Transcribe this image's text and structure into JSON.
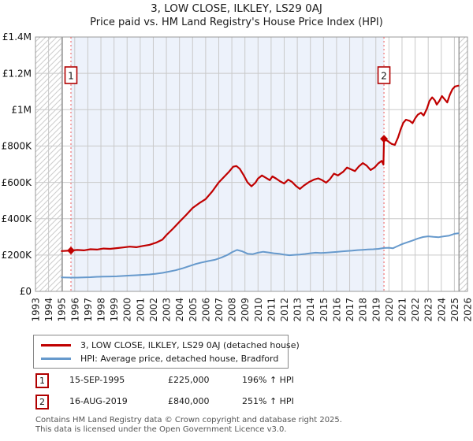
{
  "chart_data": {
    "type": "line",
    "title": "3, LOW CLOSE, ILKLEY, LS29 0AJ",
    "subtitle": "Price paid vs. HM Land Registry's House Price Index (HPI)",
    "grid": true,
    "legend_position": "bottom-left",
    "x_axis": {
      "min": 1993,
      "max": 2026,
      "tick_years": [
        1993,
        1994,
        1995,
        1996,
        1997,
        1998,
        1999,
        2000,
        2001,
        2002,
        2003,
        2004,
        2005,
        2006,
        2007,
        2008,
        2009,
        2010,
        2011,
        2012,
        2013,
        2014,
        2015,
        2016,
        2017,
        2018,
        2019,
        2020,
        2021,
        2022,
        2023,
        2024,
        2025,
        2026
      ]
    },
    "y_axis": {
      "min": 0,
      "max": 1400000,
      "ticks": [
        {
          "value": 0,
          "label": "£0"
        },
        {
          "value": 200000,
          "label": "£200K"
        },
        {
          "value": 400000,
          "label": "£400K"
        },
        {
          "value": 600000,
          "label": "£600K"
        },
        {
          "value": 800000,
          "label": "£800K"
        },
        {
          "value": 1000000,
          "label": "£1M"
        },
        {
          "value": 1200000,
          "label": "£1.2M"
        },
        {
          "value": 1400000,
          "label": "£1.4M"
        }
      ]
    },
    "regions": {
      "hatched": [
        [
          1993,
          1995.05
        ],
        [
          2025.35,
          2026
        ]
      ],
      "hpi_shaded": [
        1995.71,
        2019.62
      ]
    },
    "sales": [
      {
        "n": "1",
        "year": 1995.71,
        "value": 225000
      },
      {
        "n": "2",
        "year": 2019.62,
        "value": 840000
      }
    ],
    "colors": {
      "property_line": "#c00000",
      "hpi_line": "#6699cc",
      "grid": "#c9c9c9",
      "border": "#999999",
      "boundary": "#888888",
      "dashed_marker": "#ee5a5a",
      "shade": "#edf2fb",
      "hatch": "#cccccc",
      "marker_box_border": "#b00000"
    },
    "series": [
      {
        "name": "3, LOW CLOSE, ILKLEY, LS29 0AJ (detached house)",
        "color": "#c00000",
        "points": [
          [
            1995.0,
            222000
          ],
          [
            1995.71,
            225000
          ],
          [
            1996.2,
            228000
          ],
          [
            1996.7,
            226000
          ],
          [
            1997.2,
            232000
          ],
          [
            1997.7,
            230000
          ],
          [
            1998.2,
            236000
          ],
          [
            1998.7,
            234000
          ],
          [
            1999.2,
            238000
          ],
          [
            1999.7,
            242000
          ],
          [
            2000.2,
            246000
          ],
          [
            2000.7,
            243000
          ],
          [
            2001.2,
            250000
          ],
          [
            2001.7,
            256000
          ],
          [
            2002.2,
            268000
          ],
          [
            2002.7,
            285000
          ],
          [
            2003.0,
            310000
          ],
          [
            2003.5,
            345000
          ],
          [
            2004.0,
            383000
          ],
          [
            2004.5,
            420000
          ],
          [
            2005.0,
            459000
          ],
          [
            2005.5,
            485000
          ],
          [
            2006.0,
            508000
          ],
          [
            2006.5,
            550000
          ],
          [
            2007.0,
            600000
          ],
          [
            2007.4,
            630000
          ],
          [
            2007.8,
            660000
          ],
          [
            2008.1,
            686000
          ],
          [
            2008.35,
            690000
          ],
          [
            2008.6,
            675000
          ],
          [
            2008.9,
            640000
          ],
          [
            2009.2,
            600000
          ],
          [
            2009.5,
            578000
          ],
          [
            2009.8,
            598000
          ],
          [
            2010.0,
            621000
          ],
          [
            2010.3,
            638000
          ],
          [
            2010.6,
            625000
          ],
          [
            2010.9,
            612000
          ],
          [
            2011.1,
            633000
          ],
          [
            2011.4,
            620000
          ],
          [
            2011.7,
            605000
          ],
          [
            2012.0,
            594000
          ],
          [
            2012.3,
            615000
          ],
          [
            2012.6,
            602000
          ],
          [
            2012.9,
            580000
          ],
          [
            2013.2,
            564000
          ],
          [
            2013.5,
            582000
          ],
          [
            2013.9,
            602000
          ],
          [
            2014.3,
            616000
          ],
          [
            2014.6,
            622000
          ],
          [
            2014.9,
            612000
          ],
          [
            2015.2,
            598000
          ],
          [
            2015.5,
            618000
          ],
          [
            2015.8,
            648000
          ],
          [
            2016.1,
            638000
          ],
          [
            2016.5,
            658000
          ],
          [
            2016.8,
            682000
          ],
          [
            2017.1,
            672000
          ],
          [
            2017.4,
            662000
          ],
          [
            2017.7,
            688000
          ],
          [
            2018.0,
            706000
          ],
          [
            2018.3,
            692000
          ],
          [
            2018.6,
            668000
          ],
          [
            2018.9,
            682000
          ],
          [
            2019.2,
            705000
          ],
          [
            2019.45,
            718000
          ],
          [
            2019.58,
            698000
          ],
          [
            2019.62,
            840000
          ],
          [
            2019.9,
            828000
          ],
          [
            2020.2,
            812000
          ],
          [
            2020.45,
            806000
          ],
          [
            2020.7,
            848000
          ],
          [
            2020.9,
            892000
          ],
          [
            2021.1,
            928000
          ],
          [
            2021.3,
            945000
          ],
          [
            2021.6,
            938000
          ],
          [
            2021.8,
            926000
          ],
          [
            2022.0,
            952000
          ],
          [
            2022.2,
            972000
          ],
          [
            2022.45,
            983000
          ],
          [
            2022.65,
            968000
          ],
          [
            2022.9,
            1005000
          ],
          [
            2023.1,
            1048000
          ],
          [
            2023.3,
            1068000
          ],
          [
            2023.5,
            1052000
          ],
          [
            2023.65,
            1028000
          ],
          [
            2023.85,
            1048000
          ],
          [
            2024.05,
            1075000
          ],
          [
            2024.25,
            1058000
          ],
          [
            2024.45,
            1040000
          ],
          [
            2024.65,
            1082000
          ],
          [
            2024.85,
            1112000
          ],
          [
            2025.05,
            1128000
          ],
          [
            2025.3,
            1132000
          ]
        ]
      },
      {
        "name": "HPI: Average price, detached house, Bradford",
        "color": "#6699cc",
        "points": [
          [
            1995.0,
            77000
          ],
          [
            1995.71,
            76000
          ],
          [
            1996.2,
            76000
          ],
          [
            1996.7,
            77000
          ],
          [
            1997.2,
            78000
          ],
          [
            1997.7,
            80000
          ],
          [
            1998.2,
            81000
          ],
          [
            1998.7,
            82000
          ],
          [
            1999.2,
            83000
          ],
          [
            1999.7,
            85000
          ],
          [
            2000.2,
            87000
          ],
          [
            2000.7,
            89000
          ],
          [
            2001.2,
            91000
          ],
          [
            2001.7,
            93000
          ],
          [
            2002.2,
            97000
          ],
          [
            2002.7,
            102000
          ],
          [
            2003.2,
            109000
          ],
          [
            2003.7,
            116000
          ],
          [
            2004.2,
            126000
          ],
          [
            2004.7,
            138000
          ],
          [
            2005.2,
            150000
          ],
          [
            2005.7,
            159000
          ],
          [
            2006.2,
            167000
          ],
          [
            2006.7,
            174000
          ],
          [
            2007.2,
            186000
          ],
          [
            2007.7,
            202000
          ],
          [
            2008.0,
            215000
          ],
          [
            2008.4,
            228000
          ],
          [
            2008.8,
            220000
          ],
          [
            2009.2,
            207000
          ],
          [
            2009.6,
            205000
          ],
          [
            2010.0,
            213000
          ],
          [
            2010.4,
            218000
          ],
          [
            2010.8,
            214000
          ],
          [
            2011.2,
            210000
          ],
          [
            2011.6,
            207000
          ],
          [
            2012.0,
            202000
          ],
          [
            2012.4,
            199000
          ],
          [
            2012.8,
            201000
          ],
          [
            2013.2,
            203000
          ],
          [
            2013.6,
            206000
          ],
          [
            2014.0,
            210000
          ],
          [
            2014.4,
            213000
          ],
          [
            2014.8,
            211000
          ],
          [
            2015.2,
            213000
          ],
          [
            2015.6,
            215000
          ],
          [
            2016.0,
            217000
          ],
          [
            2016.4,
            220000
          ],
          [
            2016.8,
            222000
          ],
          [
            2017.2,
            224000
          ],
          [
            2017.6,
            227000
          ],
          [
            2018.0,
            229000
          ],
          [
            2018.4,
            231000
          ],
          [
            2018.8,
            232000
          ],
          [
            2019.2,
            234000
          ],
          [
            2019.62,
            239000
          ],
          [
            2020.0,
            240000
          ],
          [
            2020.3,
            237000
          ],
          [
            2020.6,
            247000
          ],
          [
            2021.0,
            260000
          ],
          [
            2021.4,
            270000
          ],
          [
            2021.8,
            280000
          ],
          [
            2022.2,
            291000
          ],
          [
            2022.6,
            299000
          ],
          [
            2023.0,
            303000
          ],
          [
            2023.4,
            300000
          ],
          [
            2023.8,
            298000
          ],
          [
            2024.2,
            303000
          ],
          [
            2024.6,
            307000
          ],
          [
            2025.0,
            317000
          ],
          [
            2025.3,
            320000
          ]
        ]
      }
    ]
  },
  "sales_table": {
    "rows": [
      {
        "num": "1",
        "date": "15-SEP-1995",
        "price": "£225,000",
        "hpi_change": "196% ↑ HPI"
      },
      {
        "num": "2",
        "date": "16-AUG-2019",
        "price": "£840,000",
        "hpi_change": "251% ↑ HPI"
      }
    ]
  },
  "footer": {
    "line1": "Contains HM Land Registry data © Crown copyright and database right 2025.",
    "line2": "This data is licensed under the Open Government Licence v3.0."
  }
}
